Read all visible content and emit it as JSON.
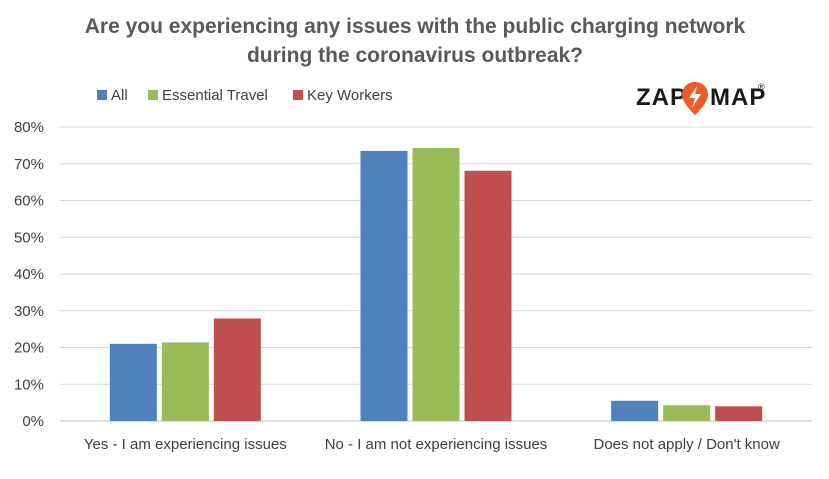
{
  "chart_data": {
    "type": "bar",
    "title": "Are you experiencing any issues with the public charging network during the coronavirus outbreak?",
    "title_lines": [
      "Are you experiencing any issues with the public charging network",
      "during the coronavirus outbreak?"
    ],
    "categories": [
      "Yes - I am experiencing issues",
      "No - I am not experiencing issues",
      "Does not apply / Don't know"
    ],
    "series": [
      {
        "name": "All",
        "color": "#4f81bd",
        "values": [
          0.21,
          0.735,
          0.055
        ]
      },
      {
        "name": "Essential Travel",
        "color": "#9bbb59",
        "values": [
          0.214,
          0.743,
          0.043
        ]
      },
      {
        "name": "Key Workers",
        "color": "#c0504d",
        "values": [
          0.279,
          0.681,
          0.04
        ]
      }
    ],
    "y_ticks": [
      "0%",
      "10%",
      "20%",
      "30%",
      "40%",
      "50%",
      "60%",
      "70%",
      "80%"
    ],
    "ylim": [
      0,
      0.8
    ],
    "legend_position": "top-left",
    "grid": true
  },
  "logo": {
    "left": "ZAP",
    "right": "MAP",
    "mark": "®",
    "accent": "#f05a28"
  }
}
